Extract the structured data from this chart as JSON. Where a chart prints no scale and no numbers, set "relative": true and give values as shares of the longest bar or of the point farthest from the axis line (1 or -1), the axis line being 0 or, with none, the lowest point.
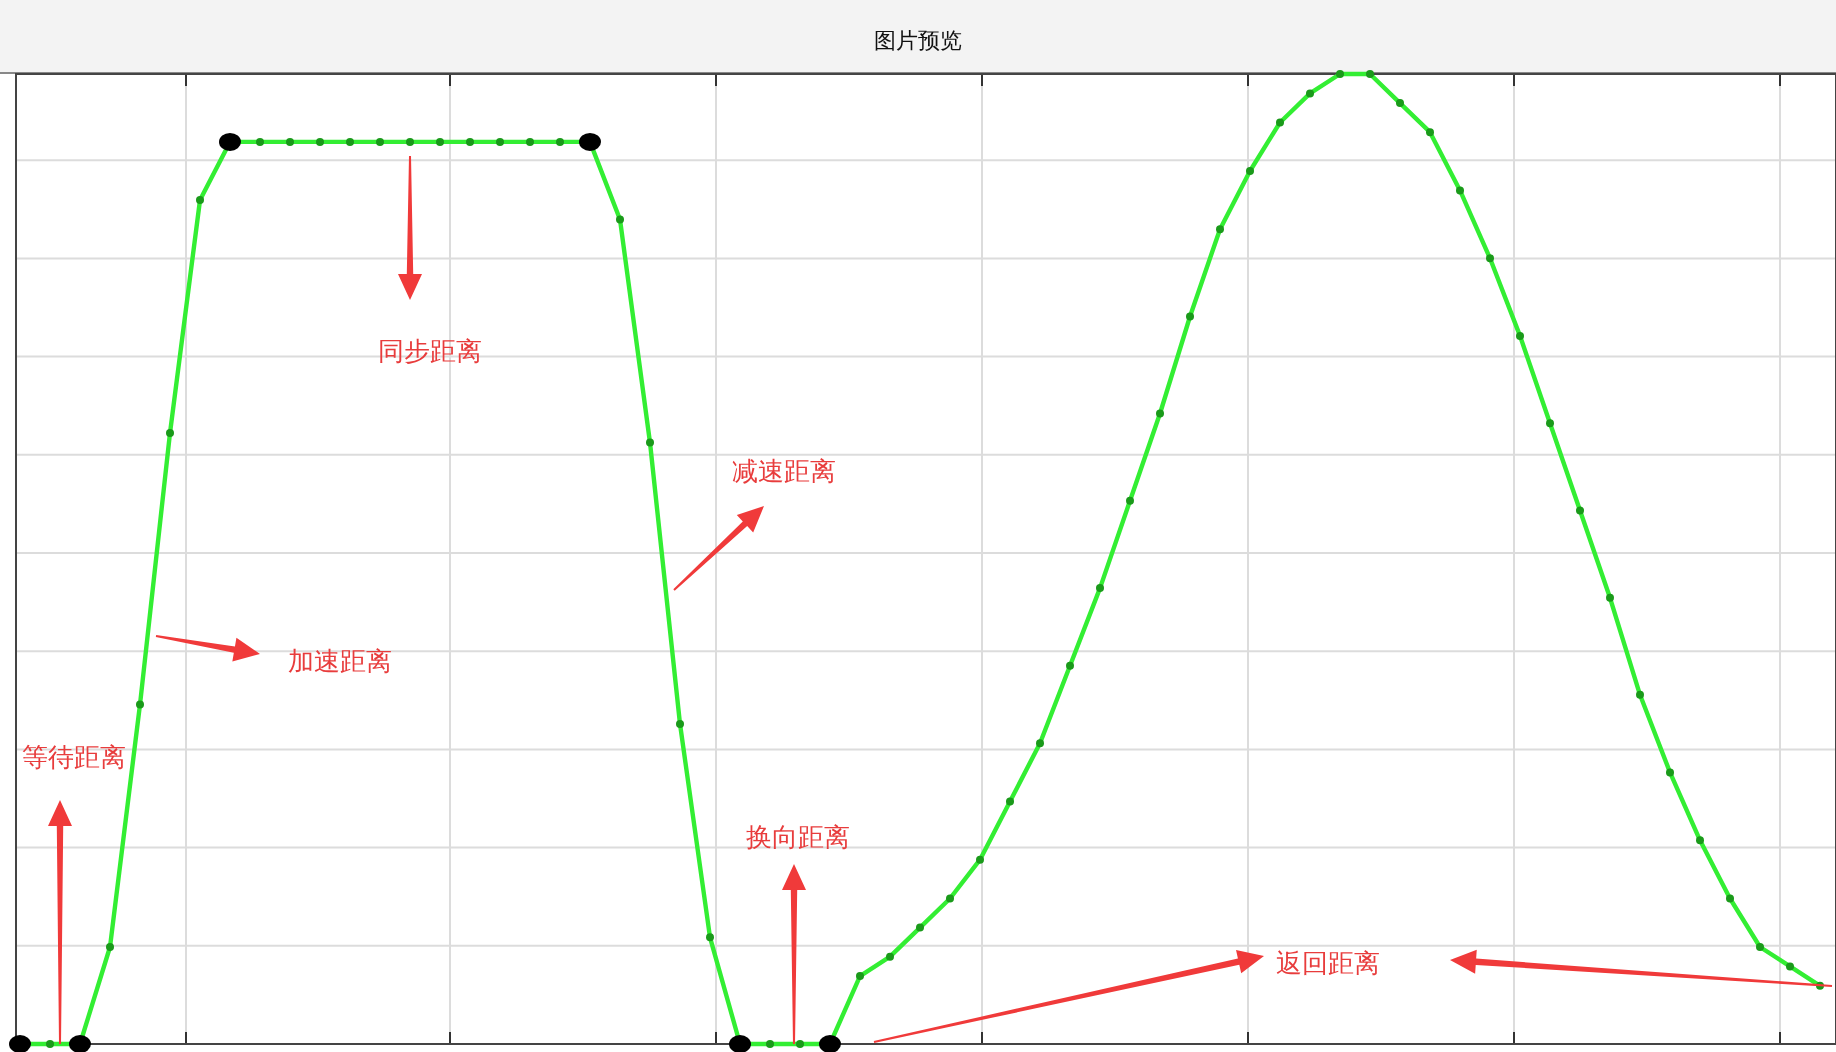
{
  "chart_data": {
    "type": "line",
    "title": "图片预览",
    "relative": true,
    "grid": true,
    "marker": "circle",
    "line_style": "solid",
    "categories": [
      null,
      null,
      null,
      null,
      null,
      null,
      null,
      null,
      null,
      null,
      null,
      null,
      null,
      null,
      null,
      null,
      null,
      null,
      null,
      null,
      null,
      null,
      null,
      null,
      null,
      null,
      null,
      null,
      null,
      null,
      null,
      null,
      null,
      null,
      null,
      null,
      null,
      null,
      null,
      null,
      null,
      null,
      null,
      null,
      null,
      null,
      null,
      null,
      null,
      null,
      null,
      null,
      null,
      null,
      null,
      null,
      null,
      null,
      null,
      null,
      null
    ],
    "series": [
      {
        "color": "#33ee33",
        "colors": [
          "#000000",
          "#33ee33",
          "#000000",
          "#33ee33",
          "#33ee33",
          "#33ee33",
          "#33ee33",
          "#000000",
          "#33ee33",
          "#33ee33",
          "#33ee33",
          "#33ee33",
          "#33ee33",
          "#33ee33",
          "#33ee33",
          "#33ee33",
          "#33ee33",
          "#33ee33",
          "#33ee33",
          "#000000",
          "#33ee33",
          "#33ee33",
          "#33ee33",
          "#33ee33",
          "#000000",
          "#33ee33",
          "#33ee33",
          "#000000",
          "#33ee33",
          "#33ee33",
          "#33ee33",
          "#33ee33",
          "#33ee33",
          "#33ee33",
          "#33ee33",
          "#33ee33",
          "#33ee33",
          "#33ee33",
          "#33ee33",
          "#33ee33",
          "#33ee33",
          "#33ee33",
          "#33ee33",
          "#33ee33",
          "#33ee33",
          "#33ee33",
          "#33ee33",
          "#33ee33",
          "#33ee33",
          "#33ee33",
          "#33ee33",
          "#33ee33",
          "#33ee33",
          "#33ee33",
          "#33ee33",
          "#33ee33",
          "#33ee33",
          "#33ee33",
          "#33ee33",
          "#33ee33",
          "#33ee33"
        ],
        "values": [
          0,
          0,
          0,
          0.1,
          0.35,
          0.63,
          0.87,
          0.93,
          0.93,
          0.93,
          0.93,
          0.93,
          0.93,
          0.93,
          0.93,
          0.93,
          0.93,
          0.93,
          0.93,
          0.93,
          0.85,
          0.62,
          0.33,
          0.11,
          0,
          0,
          0,
          0,
          0.07,
          0.09,
          0.12,
          0.15,
          0.19,
          0.25,
          0.31,
          0.39,
          0.47,
          0.56,
          0.65,
          0.75,
          0.84,
          0.9,
          0.95,
          0.98,
          1.0,
          1.0,
          0.97,
          0.94,
          0.88,
          0.81,
          0.73,
          0.64,
          0.55,
          0.46,
          0.36,
          0.28,
          0.21,
          0.15,
          0.1,
          0.08,
          0.06
        ]
      }
    ],
    "annotations": [
      "同步距离",
      "减速距离",
      "加速距离",
      "等待距离",
      "换向距离",
      "返回距离"
    ]
  }
}
